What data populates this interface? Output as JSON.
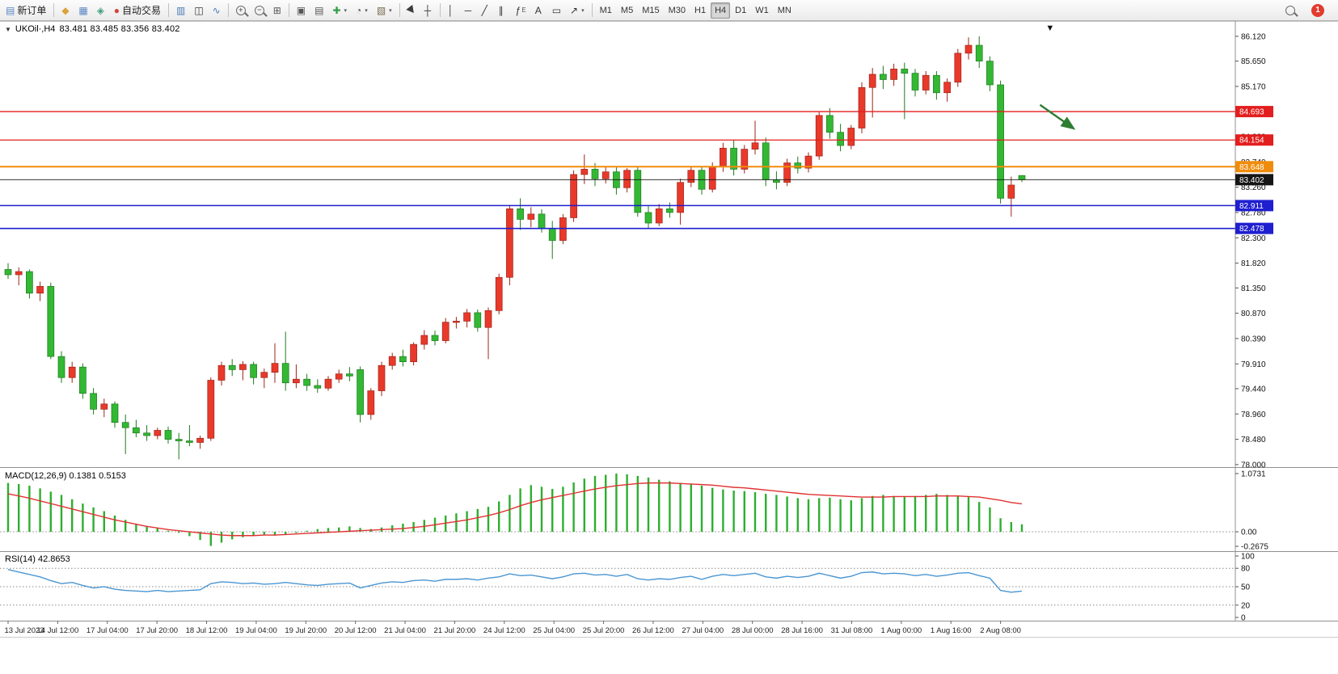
{
  "toolbar": {
    "groups": [
      {
        "items": [
          {
            "name": "new-order",
            "label": "新订单",
            "glyph": "▤",
            "color": "#5b84c4"
          }
        ]
      },
      {
        "items": [
          {
            "name": "market-watch",
            "glyph": "◆",
            "color": "#d9a33a"
          },
          {
            "name": "data-window",
            "glyph": "▦",
            "color": "#5b84c4"
          },
          {
            "name": "navigator",
            "glyph": "◈",
            "color": "#3f9d7a"
          },
          {
            "name": "autotrading",
            "label": "自动交易",
            "glyph": "●",
            "color": "#d0453a"
          }
        ]
      },
      {
        "items": [
          {
            "name": "chart-bars",
            "glyph": "▥",
            "color": "#4a7ab5"
          },
          {
            "name": "chart-candles",
            "glyph": "◫",
            "color": "#333333"
          },
          {
            "name": "chart-line",
            "glyph": "∿",
            "color": "#4a7ab5"
          }
        ]
      },
      {
        "items": [
          {
            "name": "zoom-in",
            "css": "mag",
            "sign": "+"
          },
          {
            "name": "zoom-out",
            "css": "mag",
            "sign": "−"
          },
          {
            "name": "tile-windows",
            "glyph": "⊞",
            "color": "#555555"
          }
        ]
      },
      {
        "items": [
          {
            "name": "cascade-windows",
            "glyph": "▣",
            "color": "#555555"
          },
          {
            "name": "arrange-windows",
            "glyph": "▤",
            "color": "#555555"
          },
          {
            "name": "new-chart",
            "glyph": "✚",
            "color": "#2f9e44",
            "dropdown": true
          },
          {
            "name": "periods",
            "glyph": "◔",
            "color": "#555555",
            "dropdown": true
          },
          {
            "name": "templates",
            "glyph": "▧",
            "color": "#7a6a52",
            "dropdown": true
          }
        ]
      },
      {
        "items": [
          {
            "name": "cursor",
            "css": "cursor"
          },
          {
            "name": "crosshair",
            "glyph": "┼",
            "color": "#333333"
          }
        ]
      },
      {
        "items": [
          {
            "name": "vertical-line",
            "glyph": "│",
            "color": "#333333"
          },
          {
            "name": "horizontal-line",
            "glyph": "─",
            "color": "#333333"
          },
          {
            "name": "trendline",
            "glyph": "╱",
            "color": "#333333"
          },
          {
            "name": "channel",
            "glyph": "∥",
            "color": "#333333"
          },
          {
            "name": "fibonacci",
            "glyph": "ƒ",
            "suffix": "E",
            "color": "#333333"
          },
          {
            "name": "text",
            "glyph": "A",
            "color": "#333333"
          },
          {
            "name": "text-label",
            "glyph": "▭",
            "color": "#333333"
          },
          {
            "name": "arrows",
            "glyph": "↗",
            "color": "#333333",
            "dropdown": true
          }
        ]
      },
      {
        "items": [
          {
            "name": "tf-m1",
            "label": "M1",
            "tf": true
          },
          {
            "name": "tf-m5",
            "label": "M5",
            "tf": true
          },
          {
            "name": "tf-m15",
            "label": "M15",
            "tf": true
          },
          {
            "name": "tf-m30",
            "label": "M30",
            "tf": true
          },
          {
            "name": "tf-h1",
            "label": "H1",
            "tf": true
          },
          {
            "name": "tf-h4",
            "label": "H4",
            "tf": true,
            "active": true
          },
          {
            "name": "tf-d1",
            "label": "D1",
            "tf": true
          },
          {
            "name": "tf-w1",
            "label": "W1",
            "tf": true
          },
          {
            "name": "tf-mn",
            "label": "MN",
            "tf": true
          }
        ]
      }
    ],
    "right": [
      {
        "name": "search",
        "css": "mag"
      },
      {
        "name": "notifications",
        "badge": "1"
      }
    ]
  },
  "panes": {
    "collapse_glyph": "▼",
    "price_title": "UKOil·,H4",
    "price_ohlc": "83.481 83.485 83.356 83.402",
    "macd_label": "MACD(12,26,9) 0.1381 0.5153",
    "rsi_label": "RSI(14) 42.8653"
  },
  "chart_data": {
    "type": "candlestick",
    "symbol": "UKOil",
    "timeframe": "H4",
    "price": {
      "ylim": [
        78.0,
        86.41
      ],
      "yticks": [
        "86.120",
        "85.650",
        "85.170",
        "84.700",
        "84.220",
        "83.740",
        "83.260",
        "82.780",
        "82.300",
        "81.820",
        "81.350",
        "80.870",
        "80.390",
        "79.910",
        "79.440",
        "78.960",
        "78.480",
        "78.000"
      ],
      "bull_color": "#e8392b",
      "bull_border": "#9e2418",
      "bear_color": "#33b833",
      "bear_border": "#1e7a1e",
      "levels": [
        {
          "price": 84.693,
          "label": "84.693",
          "color": "#e31e1e",
          "width": 1.3
        },
        {
          "price": 84.154,
          "label": "84.154",
          "color": "#e31e1e",
          "width": 1.3
        },
        {
          "price": 83.648,
          "label": "83.648",
          "color": "#f08c0c",
          "width": 2
        },
        {
          "price": 83.402,
          "label": "83.402",
          "color": "#161616",
          "width": 0.9,
          "current": true
        },
        {
          "price": 82.911,
          "label": "82.911",
          "color": "#1f1fd0",
          "width": 1.6
        },
        {
          "price": 82.478,
          "label": "82.478",
          "color": "#1f1fd0",
          "width": 1.6
        }
      ],
      "arrow": {
        "x1_bar": 96.7,
        "price1": 84.82,
        "x2_bar": 99.8,
        "price2": 84.38,
        "color": "#2e7d32"
      },
      "top_marker": {
        "x_bar": 97.6,
        "glyph": "▼"
      },
      "candles": [
        [
          81.7,
          81.82,
          81.52,
          81.6
        ],
        [
          81.6,
          81.74,
          81.4,
          81.66
        ],
        [
          81.66,
          81.7,
          81.15,
          81.25
        ],
        [
          81.25,
          81.47,
          81.1,
          81.38
        ],
        [
          81.38,
          81.45,
          80.0,
          80.05
        ],
        [
          80.05,
          80.15,
          79.55,
          79.65
        ],
        [
          79.65,
          79.95,
          79.55,
          79.85
        ],
        [
          79.85,
          79.92,
          79.25,
          79.35
        ],
        [
          79.35,
          79.45,
          78.95,
          79.05
        ],
        [
          79.05,
          79.25,
          78.9,
          79.15
        ],
        [
          79.15,
          79.2,
          78.7,
          78.8
        ],
        [
          78.8,
          78.95,
          78.2,
          78.7
        ],
        [
          78.7,
          78.85,
          78.52,
          78.6
        ],
        [
          78.6,
          78.75,
          78.45,
          78.55
        ],
        [
          78.55,
          78.7,
          78.48,
          78.65
        ],
        [
          78.65,
          78.72,
          78.4,
          78.48
        ],
        [
          78.48,
          78.6,
          78.1,
          78.45
        ],
        [
          78.45,
          78.75,
          78.35,
          78.42
        ],
        [
          78.42,
          78.55,
          78.3,
          78.5
        ],
        [
          78.5,
          79.65,
          78.45,
          79.6
        ],
        [
          79.6,
          79.95,
          79.5,
          79.88
        ],
        [
          79.88,
          80.0,
          79.68,
          79.8
        ],
        [
          79.8,
          79.96,
          79.6,
          79.9
        ],
        [
          79.9,
          79.95,
          79.52,
          79.65
        ],
        [
          79.65,
          79.82,
          79.45,
          79.75
        ],
        [
          79.75,
          80.3,
          79.55,
          79.92
        ],
        [
          79.92,
          80.52,
          79.4,
          79.55
        ],
        [
          79.55,
          79.9,
          79.45,
          79.62
        ],
        [
          79.62,
          79.72,
          79.4,
          79.5
        ],
        [
          79.5,
          79.62,
          79.36,
          79.45
        ],
        [
          79.45,
          79.68,
          79.4,
          79.62
        ],
        [
          79.62,
          79.8,
          79.55,
          79.72
        ],
        [
          79.72,
          79.85,
          79.58,
          79.68
        ],
        [
          79.8,
          79.86,
          78.8,
          78.95
        ],
        [
          78.95,
          79.45,
          78.85,
          79.4
        ],
        [
          79.4,
          79.95,
          79.3,
          79.88
        ],
        [
          79.88,
          80.12,
          79.8,
          80.05
        ],
        [
          80.05,
          80.18,
          79.86,
          79.95
        ],
        [
          79.95,
          80.32,
          79.88,
          80.28
        ],
        [
          80.28,
          80.55,
          80.18,
          80.45
        ],
        [
          80.45,
          80.54,
          80.26,
          80.35
        ],
        [
          80.35,
          80.78,
          80.3,
          80.7
        ],
        [
          80.7,
          80.8,
          80.58,
          80.72
        ],
        [
          80.72,
          80.95,
          80.6,
          80.88
        ],
        [
          80.88,
          80.94,
          80.52,
          80.6
        ],
        [
          80.6,
          80.98,
          80.0,
          80.92
        ],
        [
          80.92,
          81.62,
          80.85,
          81.55
        ],
        [
          81.55,
          82.92,
          81.4,
          82.85
        ],
        [
          82.85,
          83.05,
          82.45,
          82.65
        ],
        [
          82.65,
          82.88,
          82.5,
          82.75
        ],
        [
          82.75,
          82.84,
          82.4,
          82.48
        ],
        [
          82.48,
          82.62,
          81.9,
          82.25
        ],
        [
          82.25,
          82.75,
          82.18,
          82.68
        ],
        [
          82.68,
          83.58,
          82.6,
          83.5
        ],
        [
          83.5,
          83.88,
          83.32,
          83.6
        ],
        [
          83.6,
          83.72,
          83.28,
          83.42
        ],
        [
          83.42,
          83.64,
          83.33,
          83.55
        ],
        [
          83.55,
          83.66,
          83.12,
          83.25
        ],
        [
          83.25,
          83.62,
          83.16,
          83.58
        ],
        [
          83.58,
          83.66,
          82.7,
          82.78
        ],
        [
          82.78,
          82.9,
          82.48,
          82.58
        ],
        [
          82.58,
          82.94,
          82.52,
          82.85
        ],
        [
          82.85,
          82.97,
          82.68,
          82.78
        ],
        [
          82.78,
          83.42,
          82.55,
          83.35
        ],
        [
          83.35,
          83.66,
          83.26,
          83.58
        ],
        [
          83.58,
          83.66,
          83.12,
          83.22
        ],
        [
          83.22,
          83.73,
          83.16,
          83.65
        ],
        [
          83.65,
          84.1,
          83.55,
          84.0
        ],
        [
          84.0,
          84.16,
          83.48,
          83.6
        ],
        [
          83.6,
          84.06,
          83.52,
          83.98
        ],
        [
          83.98,
          84.52,
          83.88,
          84.1
        ],
        [
          84.1,
          84.2,
          83.28,
          83.4
        ],
        [
          83.4,
          83.56,
          83.22,
          83.35
        ],
        [
          83.35,
          83.8,
          83.28,
          83.72
        ],
        [
          83.72,
          83.84,
          83.52,
          83.62
        ],
        [
          83.62,
          83.92,
          83.54,
          83.85
        ],
        [
          83.85,
          84.7,
          83.78,
          84.62
        ],
        [
          84.62,
          84.76,
          84.18,
          84.3
        ],
        [
          84.3,
          84.46,
          83.94,
          84.05
        ],
        [
          84.05,
          84.44,
          83.98,
          84.38
        ],
        [
          84.38,
          85.25,
          84.28,
          85.15
        ],
        [
          85.15,
          85.52,
          84.58,
          85.4
        ],
        [
          85.4,
          85.56,
          85.12,
          85.3
        ],
        [
          85.3,
          85.6,
          85.18,
          85.5
        ],
        [
          85.5,
          85.62,
          84.55,
          85.42
        ],
        [
          85.42,
          85.5,
          84.98,
          85.1
        ],
        [
          85.1,
          85.46,
          85.02,
          85.38
        ],
        [
          85.38,
          85.46,
          84.92,
          85.05
        ],
        [
          85.05,
          85.32,
          84.88,
          85.25
        ],
        [
          85.25,
          85.88,
          85.16,
          85.8
        ],
        [
          85.8,
          86.1,
          85.68,
          85.95
        ],
        [
          85.95,
          86.12,
          85.52,
          85.65
        ],
        [
          85.65,
          85.74,
          85.08,
          85.2
        ],
        [
          85.2,
          85.28,
          82.95,
          83.05
        ],
        [
          83.05,
          83.46,
          82.7,
          83.3
        ],
        [
          83.481,
          83.485,
          83.356,
          83.402
        ]
      ]
    },
    "macd": {
      "label": "MACD(12,26,9) 0.1381 0.5153",
      "yticks": [
        "1.0731",
        "0.00",
        "-0.2675"
      ],
      "ylim": [
        -0.2675,
        1.0731
      ],
      "histogram_color": "#2eae2e",
      "signal_color": "#e03131",
      "histogram": [
        0.9,
        0.88,
        0.85,
        0.8,
        0.74,
        0.68,
        0.6,
        0.52,
        0.45,
        0.38,
        0.3,
        0.22,
        0.15,
        0.1,
        0.06,
        0.02,
        -0.02,
        -0.08,
        -0.15,
        -0.26,
        -0.2,
        -0.14,
        -0.1,
        -0.06,
        -0.05,
        -0.07,
        -0.05,
        -0.02,
        0.02,
        0.05,
        0.07,
        0.08,
        0.1,
        0.07,
        0.05,
        0.08,
        0.12,
        0.15,
        0.18,
        0.22,
        0.26,
        0.3,
        0.34,
        0.38,
        0.42,
        0.46,
        0.56,
        0.68,
        0.8,
        0.86,
        0.83,
        0.79,
        0.83,
        0.91,
        0.98,
        1.03,
        1.05,
        1.0731,
        1.06,
        1.03,
        1.0,
        0.96,
        0.93,
        0.9,
        0.88,
        0.85,
        0.81,
        0.78,
        0.76,
        0.75,
        0.73,
        0.7,
        0.68,
        0.65,
        0.62,
        0.6,
        0.62,
        0.63,
        0.6,
        0.58,
        0.62,
        0.66,
        0.68,
        0.66,
        0.64,
        0.66,
        0.68,
        0.7,
        0.68,
        0.66,
        0.64,
        0.55,
        0.45,
        0.25,
        0.18,
        0.1381
      ],
      "signal": [
        0.7,
        0.66,
        0.62,
        0.57,
        0.52,
        0.47,
        0.42,
        0.37,
        0.32,
        0.27,
        0.22,
        0.18,
        0.14,
        0.1,
        0.07,
        0.04,
        0.02,
        0.0,
        -0.02,
        -0.04,
        -0.06,
        -0.07,
        -0.07,
        -0.07,
        -0.06,
        -0.06,
        -0.05,
        -0.04,
        -0.03,
        -0.02,
        -0.01,
        0.0,
        0.01,
        0.02,
        0.03,
        0.04,
        0.05,
        0.06,
        0.08,
        0.1,
        0.13,
        0.16,
        0.19,
        0.22,
        0.26,
        0.3,
        0.35,
        0.41,
        0.48,
        0.54,
        0.59,
        0.63,
        0.67,
        0.71,
        0.75,
        0.79,
        0.82,
        0.85,
        0.87,
        0.89,
        0.9,
        0.9,
        0.9,
        0.89,
        0.88,
        0.87,
        0.86,
        0.84,
        0.82,
        0.81,
        0.79,
        0.77,
        0.75,
        0.73,
        0.71,
        0.69,
        0.68,
        0.67,
        0.66,
        0.65,
        0.64,
        0.64,
        0.64,
        0.65,
        0.65,
        0.65,
        0.65,
        0.66,
        0.66,
        0.66,
        0.65,
        0.64,
        0.61,
        0.58,
        0.54,
        0.5153
      ]
    },
    "rsi": {
      "label": "RSI(14) 42.8653",
      "yticks": [
        "100",
        "80",
        "50",
        "20",
        "0"
      ],
      "levels": [
        80,
        50,
        20
      ],
      "line_color": "#4a96d2",
      "values": [
        78,
        74,
        70,
        66,
        60,
        55,
        57,
        52,
        48,
        50,
        46,
        44,
        43,
        42,
        44,
        42,
        43,
        44,
        45,
        55,
        58,
        57,
        55,
        56,
        54,
        55,
        57,
        55,
        53,
        52,
        54,
        55,
        56,
        48,
        52,
        56,
        58,
        57,
        60,
        61,
        59,
        62,
        62,
        63,
        61,
        64,
        66,
        71,
        68,
        69,
        66,
        63,
        66,
        71,
        72,
        69,
        70,
        67,
        70,
        63,
        61,
        63,
        62,
        65,
        67,
        62,
        67,
        70,
        68,
        70,
        72,
        66,
        64,
        67,
        65,
        67,
        72,
        68,
        64,
        67,
        73,
        74,
        71,
        72,
        71,
        68,
        70,
        67,
        69,
        72,
        73,
        68,
        64,
        44,
        41,
        42.8653
      ]
    },
    "time_labels": [
      "13 Jul 2023",
      "14 Jul 12:00",
      "17 Jul 04:00",
      "17 Jul 20:00",
      "18 Jul 12:00",
      "19 Jul 04:00",
      "19 Jul 20:00",
      "20 Jul 12:00",
      "21 Jul 04:00",
      "21 Jul 20:00",
      "24 Jul 12:00",
      "25 Jul 04:00",
      "25 Jul 20:00",
      "26 Jul 12:00",
      "27 Jul 04:00",
      "28 Jul 00:00",
      "28 Jul 16:00",
      "31 Jul 08:00",
      "1 Aug 00:00",
      "1 Aug 16:00",
      "2 Aug 08:00"
    ]
  }
}
